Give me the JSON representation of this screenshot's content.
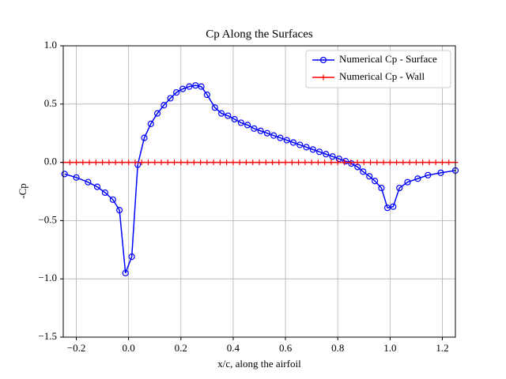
{
  "chart_data": {
    "type": "line",
    "title": "Cp Along the Surfaces",
    "xlabel": "x/c, along the airfoil",
    "ylabel": "-Cp",
    "xlim": [
      -0.25,
      1.25
    ],
    "ylim": [
      -1.5,
      1.0
    ],
    "xticks": [
      {
        "value": -0.2,
        "label": "−0.2"
      },
      {
        "value": 0,
        "label": "0.0"
      },
      0.2,
      0.4,
      0.6,
      0.8,
      {
        "value": 1,
        "label": "1.0"
      },
      1.2
    ],
    "yticks": [
      {
        "value": -1.5,
        "label": "−1.5"
      },
      {
        "value": -1,
        "label": "−1.0"
      },
      {
        "value": -0.5,
        "label": "−0.5"
      },
      {
        "value": 0,
        "label": "0.0"
      },
      0.5,
      {
        "value": 1,
        "label": "1.0"
      }
    ],
    "grid": true,
    "legend": "upper right",
    "series": [
      {
        "name": "Numerical Cp - Surface",
        "color": "#0000ff",
        "marker": "circle",
        "x": [
          -0.245,
          -0.2,
          -0.155,
          -0.12,
          -0.09,
          -0.06,
          -0.035,
          -0.012,
          0.012,
          0.035,
          0.06,
          0.085,
          0.11,
          0.135,
          0.16,
          0.183,
          0.207,
          0.232,
          0.256,
          0.278,
          0.3,
          0.33,
          0.355,
          0.38,
          0.405,
          0.43,
          0.455,
          0.48,
          0.505,
          0.53,
          0.555,
          0.58,
          0.605,
          0.63,
          0.655,
          0.68,
          0.705,
          0.73,
          0.755,
          0.78,
          0.805,
          0.83,
          0.852,
          0.876,
          0.897,
          0.921,
          0.942,
          0.967,
          0.99,
          1.012,
          1.036,
          1.067,
          1.106,
          1.145,
          1.194,
          1.25
        ],
        "values": [
          -0.1,
          -0.13,
          -0.17,
          -0.21,
          -0.26,
          -0.32,
          -0.41,
          -0.95,
          -0.81,
          -0.02,
          0.21,
          0.33,
          0.42,
          0.49,
          0.55,
          0.6,
          0.63,
          0.65,
          0.66,
          0.65,
          0.58,
          0.47,
          0.42,
          0.4,
          0.37,
          0.34,
          0.32,
          0.29,
          0.27,
          0.25,
          0.23,
          0.21,
          0.19,
          0.17,
          0.15,
          0.13,
          0.11,
          0.09,
          0.07,
          0.05,
          0.03,
          0.01,
          -0.01,
          -0.04,
          -0.08,
          -0.12,
          -0.16,
          -0.22,
          -0.39,
          -0.38,
          -0.22,
          -0.17,
          -0.14,
          -0.11,
          -0.09,
          -0.07
        ]
      },
      {
        "name": "Numerical Cp - Wall",
        "color": "#ff0000",
        "marker": "plus",
        "x": [
          -0.25,
          -0.225,
          -0.2,
          -0.175,
          -0.15,
          -0.125,
          -0.1,
          -0.075,
          -0.05,
          -0.025,
          0,
          0.025,
          0.05,
          0.075,
          0.1,
          0.125,
          0.15,
          0.175,
          0.2,
          0.225,
          0.25,
          0.275,
          0.3,
          0.325,
          0.35,
          0.375,
          0.4,
          0.425,
          0.45,
          0.475,
          0.5,
          0.525,
          0.55,
          0.575,
          0.6,
          0.625,
          0.65,
          0.675,
          0.7,
          0.725,
          0.75,
          0.775,
          0.8,
          0.825,
          0.85,
          0.875,
          0.9,
          0.925,
          0.95,
          0.975,
          1,
          1.025,
          1.05,
          1.075,
          1.1,
          1.125,
          1.15,
          1.175,
          1.2,
          1.225,
          1.25
        ],
        "values": [
          0,
          0,
          0,
          0,
          0,
          0,
          0,
          0,
          0,
          0,
          0,
          0,
          0,
          0,
          0,
          0,
          0,
          0,
          0,
          0,
          0,
          0,
          0,
          0,
          0,
          0,
          0,
          0,
          0,
          0,
          0,
          0,
          0,
          0,
          0,
          0,
          0,
          0,
          0,
          0,
          0,
          0,
          0,
          0,
          0,
          0,
          0,
          0,
          0,
          0,
          0,
          0,
          0,
          0,
          0,
          0,
          0,
          0,
          0,
          0,
          0
        ]
      }
    ]
  }
}
